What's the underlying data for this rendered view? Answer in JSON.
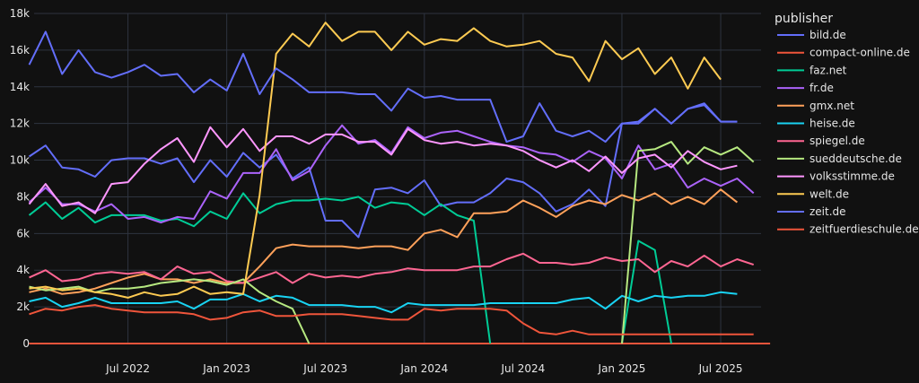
{
  "chart_data": {
    "type": "line",
    "legend_title": "publisher",
    "legend_position": "right",
    "grid": true,
    "ylim": [
      0,
      18000
    ],
    "yticks": [
      {
        "value": 0,
        "label": "0"
      },
      {
        "value": 2000,
        "label": "2k"
      },
      {
        "value": 4000,
        "label": "4k"
      },
      {
        "value": 6000,
        "label": "6k"
      },
      {
        "value": 8000,
        "label": "8k"
      },
      {
        "value": 10000,
        "label": "10k"
      },
      {
        "value": 12000,
        "label": "12k"
      },
      {
        "value": 14000,
        "label": "14k"
      },
      {
        "value": 16000,
        "label": "16k"
      },
      {
        "value": 18000,
        "label": "18k"
      }
    ],
    "xlim": [
      "2022-01",
      "2025-10"
    ],
    "xticks": [
      {
        "value": "2022-07",
        "label": "Jul 2022"
      },
      {
        "value": "2023-01",
        "label": "Jan 2023"
      },
      {
        "value": "2023-07",
        "label": "Jul 2023"
      },
      {
        "value": "2024-01",
        "label": "Jan 2024"
      },
      {
        "value": "2024-07",
        "label": "Jul 2024"
      },
      {
        "value": "2025-01",
        "label": "Jan 2025"
      },
      {
        "value": "2025-07",
        "label": "Jul 2025"
      }
    ],
    "x": [
      "2022-01",
      "2022-02",
      "2022-03",
      "2022-04",
      "2022-05",
      "2022-06",
      "2022-07",
      "2022-08",
      "2022-09",
      "2022-10",
      "2022-11",
      "2022-12",
      "2023-01",
      "2023-02",
      "2023-03",
      "2023-04",
      "2023-05",
      "2023-06",
      "2023-07",
      "2023-08",
      "2023-09",
      "2023-10",
      "2023-11",
      "2023-12",
      "2024-01",
      "2024-02",
      "2024-03",
      "2024-04",
      "2024-05",
      "2024-06",
      "2024-07",
      "2024-08",
      "2024-09",
      "2024-10",
      "2024-11",
      "2024-12",
      "2025-01",
      "2025-02",
      "2025-03",
      "2025-04",
      "2025-05",
      "2025-06",
      "2025-07",
      "2025-08",
      "2025-09",
      "2025-10"
    ],
    "series": [
      {
        "name": "bild.de",
        "color": "#636efa",
        "values": [
          10200,
          10800,
          9600,
          9500,
          9100,
          10000,
          10100,
          10100,
          9800,
          10100,
          8800,
          10000,
          9100,
          10400,
          9600,
          10300,
          9000,
          9600,
          6700,
          6700,
          5800,
          8400,
          8500,
          8200,
          8900,
          7500,
          7700,
          7700,
          8200,
          9000,
          8800,
          8200,
          7200,
          7600,
          8400,
          7500,
          12000,
          12100,
          12800,
          12000,
          12800,
          13100,
          12100,
          12100,
          null,
          null
        ]
      },
      {
        "name": "compact-online.de",
        "color": "#ef553b",
        "values": [
          0,
          0,
          0,
          0,
          0,
          0,
          0,
          0,
          0,
          0,
          0,
          0,
          0,
          0,
          0,
          0,
          0,
          0,
          0,
          0,
          0,
          0,
          0,
          0,
          0,
          0,
          0,
          0,
          0,
          0,
          0,
          0,
          0,
          0,
          0,
          0,
          0,
          0,
          0,
          0,
          0,
          0,
          0,
          0,
          0,
          0
        ]
      },
      {
        "name": "faz.net",
        "color": "#00cc96",
        "values": [
          7000,
          7700,
          6800,
          7400,
          6600,
          7000,
          7000,
          7000,
          6700,
          6800,
          6400,
          7200,
          6800,
          8200,
          7100,
          7600,
          7800,
          7800,
          7900,
          7800,
          8000,
          7400,
          7700,
          7600,
          7000,
          7600,
          7000,
          6700,
          0,
          null,
          null,
          null,
          null,
          null,
          null,
          null,
          0,
          5600,
          5100,
          0,
          null,
          null,
          null,
          null,
          null,
          null
        ]
      },
      {
        "name": "fr.de",
        "color": "#ab63fa",
        "values": [
          7700,
          8500,
          7600,
          7600,
          7200,
          7600,
          6800,
          6900,
          6600,
          6900,
          6800,
          8300,
          7900,
          9300,
          9300,
          10600,
          8900,
          9400,
          10800,
          11900,
          10900,
          11100,
          10400,
          11800,
          11200,
          11500,
          11600,
          11300,
          11000,
          10800,
          10700,
          10400,
          10300,
          9900,
          10500,
          10100,
          9000,
          10800,
          9500,
          9800,
          8500,
          9000,
          8600,
          9000,
          8200,
          null
        ]
      },
      {
        "name": "gmx.net",
        "color": "#ffa15a",
        "values": [
          2800,
          3000,
          2700,
          2800,
          3000,
          3300,
          3600,
          3800,
          3500,
          3500,
          3300,
          3500,
          3300,
          3300,
          4200,
          5200,
          5400,
          5300,
          5300,
          5300,
          5200,
          5300,
          5300,
          5100,
          6000,
          6200,
          5800,
          7100,
          7100,
          7200,
          7800,
          7400,
          6900,
          7500,
          7800,
          7600,
          8100,
          7800,
          8200,
          7600,
          8000,
          7600,
          8400,
          7700,
          null,
          null
        ]
      },
      {
        "name": "heise.de",
        "color": "#19d3f3",
        "values": [
          2300,
          2500,
          2000,
          2200,
          2500,
          2200,
          2200,
          2200,
          2200,
          2300,
          1900,
          2400,
          2400,
          2700,
          2300,
          2600,
          2500,
          2100,
          2100,
          2100,
          2000,
          2000,
          1700,
          2200,
          2100,
          2100,
          2100,
          2100,
          2200,
          2200,
          2200,
          2200,
          2200,
          2400,
          2500,
          1900,
          2600,
          2300,
          2600,
          2500,
          2600,
          2600,
          2800,
          2700,
          null,
          null
        ]
      },
      {
        "name": "spiegel.de",
        "color": "#ff6692",
        "values": [
          3600,
          4000,
          3400,
          3500,
          3800,
          3900,
          3800,
          3900,
          3500,
          4200,
          3800,
          3900,
          3400,
          3300,
          3600,
          3900,
          3300,
          3800,
          3600,
          3700,
          3600,
          3800,
          3900,
          4100,
          4000,
          4000,
          4000,
          4200,
          4200,
          4600,
          4900,
          4400,
          4400,
          4300,
          4400,
          4700,
          4500,
          4600,
          3900,
          4500,
          4200,
          4800,
          4200,
          4600,
          4300,
          null
        ]
      },
      {
        "name": "sueddeutsche.de",
        "color": "#b6e880",
        "values": [
          3100,
          2900,
          3000,
          3100,
          2800,
          3000,
          3000,
          3100,
          3300,
          3400,
          3500,
          3400,
          3200,
          3500,
          2800,
          2300,
          1900,
          0,
          null,
          null,
          null,
          null,
          null,
          null,
          null,
          null,
          null,
          null,
          null,
          null,
          null,
          null,
          null,
          null,
          null,
          null,
          0,
          10500,
          10600,
          11000,
          9800,
          10700,
          10300,
          10700,
          9900,
          null
        ]
      },
      {
        "name": "volksstimme.de",
        "color": "#ff97ff",
        "values": [
          7600,
          8700,
          7500,
          7700,
          7100,
          8700,
          8800,
          9800,
          10600,
          11200,
          9900,
          11800,
          10700,
          11700,
          10500,
          11300,
          11300,
          10900,
          11400,
          11400,
          11000,
          11000,
          10300,
          11700,
          11100,
          10900,
          11000,
          10800,
          10900,
          10800,
          10500,
          10000,
          9600,
          10000,
          9400,
          10200,
          9300,
          10100,
          10300,
          9600,
          10500,
          9900,
          9500,
          9700,
          null,
          null
        ]
      },
      {
        "name": "welt.de",
        "color": "#fecb52",
        "values": [
          3000,
          3100,
          2900,
          3000,
          2800,
          2700,
          2500,
          2800,
          2600,
          2700,
          3100,
          2700,
          2800,
          2700,
          8100,
          15800,
          16900,
          16200,
          17500,
          16500,
          17000,
          17000,
          16000,
          17000,
          16300,
          16600,
          16500,
          17200,
          16500,
          16200,
          16300,
          16500,
          15800,
          15600,
          14300,
          16500,
          15500,
          16100,
          14700,
          15600,
          13900,
          15600,
          14400,
          null,
          null,
          null
        ]
      },
      {
        "name": "zeit.de",
        "color": "#636efa",
        "values": [
          15200,
          17000,
          14700,
          16000,
          14800,
          14500,
          14800,
          15200,
          14600,
          14700,
          13700,
          14400,
          13800,
          15800,
          13600,
          15000,
          14400,
          13700,
          13700,
          13700,
          13600,
          13600,
          12700,
          13900,
          13400,
          13500,
          13300,
          13300,
          13300,
          11000,
          11300,
          13100,
          11600,
          11300,
          11600,
          11000,
          12000,
          12000,
          12800,
          12000,
          12800,
          13000,
          12100,
          12100,
          null,
          null
        ]
      },
      {
        "name": "zeitfuerdieschule.de",
        "color": "#ef553b",
        "values": [
          1600,
          1900,
          1800,
          2000,
          2100,
          1900,
          1800,
          1700,
          1700,
          1700,
          1600,
          1300,
          1400,
          1700,
          1800,
          1500,
          1500,
          1600,
          1600,
          1600,
          1500,
          1400,
          1300,
          1300,
          1900,
          1800,
          1900,
          1900,
          1900,
          1800,
          1100,
          600,
          500,
          700,
          500,
          500,
          500,
          500,
          500,
          500,
          500,
          500,
          500,
          500,
          500,
          null
        ]
      }
    ]
  }
}
